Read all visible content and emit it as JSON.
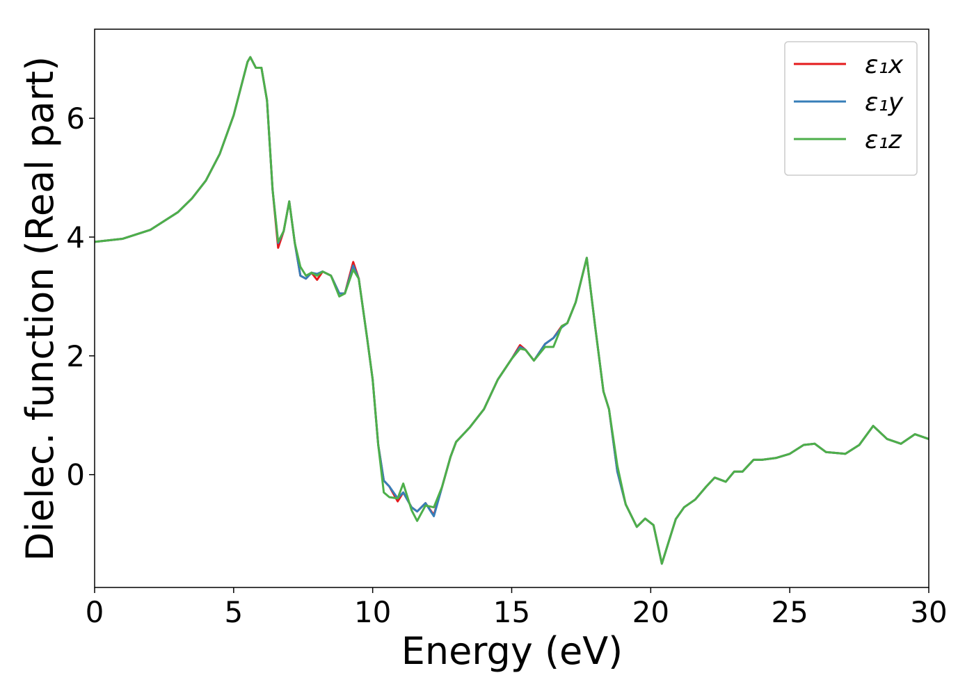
{
  "chart_data": {
    "type": "line",
    "xlabel": "Energy (eV)",
    "ylabel": "Dielec. function (Real part)",
    "x": [
      0,
      1,
      2,
      3,
      3.5,
      4,
      4.5,
      5,
      5.5,
      5.6,
      5.8,
      6,
      6.2,
      6.4,
      6.6,
      6.8,
      7,
      7.2,
      7.4,
      7.6,
      7.8,
      8,
      8.2,
      8.5,
      8.8,
      9,
      9.3,
      9.5,
      9.8,
      10,
      10.2,
      10.4,
      10.6,
      10.9,
      11.1,
      11.4,
      11.6,
      11.9,
      12.2,
      12.5,
      12.8,
      13,
      13.5,
      14,
      14.5,
      15,
      15.3,
      15.5,
      15.8,
      16.2,
      16.5,
      16.8,
      17,
      17.3,
      17.7,
      18,
      18.3,
      18.5,
      18.8,
      19.1,
      19.5,
      19.8,
      20.1,
      20.4,
      20.6,
      20.9,
      21.2,
      21.6,
      22,
      22.3,
      22.7,
      23,
      23.3,
      23.7,
      24,
      24.5,
      25,
      25.5,
      25.9,
      26.3,
      27,
      27.5,
      28,
      28.5,
      29,
      29.5,
      30
    ],
    "series": [
      {
        "name": "ε₁x",
        "color": "#e41a1c",
        "values": [
          3.92,
          3.97,
          4.12,
          4.42,
          4.65,
          4.95,
          5.4,
          6.05,
          6.95,
          7.03,
          6.85,
          6.85,
          6.3,
          4.8,
          3.82,
          4.1,
          4.6,
          3.9,
          3.35,
          3.3,
          3.4,
          3.28,
          3.42,
          3.35,
          3.05,
          3.05,
          3.58,
          3.3,
          2.3,
          1.6,
          0.5,
          -0.1,
          -0.2,
          -0.45,
          -0.3,
          -0.55,
          -0.62,
          -0.48,
          -0.68,
          -0.2,
          0.3,
          0.55,
          0.8,
          1.1,
          1.6,
          1.95,
          2.18,
          2.1,
          1.92,
          2.2,
          2.3,
          2.5,
          2.55,
          2.9,
          3.65,
          2.5,
          1.4,
          1.1,
          0.05,
          -0.5,
          -0.88,
          -0.74,
          -0.85,
          -1.5,
          -1.2,
          -0.75,
          -0.55,
          -0.42,
          -0.2,
          -0.05,
          -0.12,
          0.05,
          0.05,
          0.25,
          0.25,
          0.28,
          0.35,
          0.5,
          0.52,
          0.38,
          0.35,
          0.5,
          0.82,
          0.6,
          0.52,
          0.68,
          0.6
        ]
      },
      {
        "name": "ε₁y",
        "color": "#377eb8",
        "values": [
          3.92,
          3.97,
          4.12,
          4.42,
          4.65,
          4.95,
          5.4,
          6.05,
          6.95,
          7.03,
          6.85,
          6.85,
          6.3,
          4.8,
          3.9,
          4.1,
          4.6,
          3.9,
          3.35,
          3.3,
          3.4,
          3.38,
          3.42,
          3.35,
          3.05,
          3.05,
          3.52,
          3.3,
          2.3,
          1.6,
          0.5,
          -0.1,
          -0.2,
          -0.4,
          -0.3,
          -0.55,
          -0.62,
          -0.48,
          -0.7,
          -0.2,
          0.3,
          0.55,
          0.8,
          1.1,
          1.6,
          1.95,
          2.15,
          2.1,
          1.92,
          2.2,
          2.3,
          2.48,
          2.55,
          2.9,
          3.65,
          2.5,
          1.4,
          1.1,
          0.05,
          -0.5,
          -0.88,
          -0.74,
          -0.85,
          -1.5,
          -1.2,
          -0.75,
          -0.55,
          -0.42,
          -0.2,
          -0.05,
          -0.12,
          0.05,
          0.05,
          0.25,
          0.25,
          0.28,
          0.35,
          0.5,
          0.52,
          0.38,
          0.35,
          0.5,
          0.82,
          0.6,
          0.52,
          0.68,
          0.6
        ]
      },
      {
        "name": "ε₁z",
        "color": "#4daf4a",
        "values": [
          3.92,
          3.97,
          4.12,
          4.42,
          4.65,
          4.95,
          5.4,
          6.05,
          6.95,
          7.03,
          6.85,
          6.85,
          6.3,
          4.8,
          3.92,
          4.1,
          4.6,
          3.9,
          3.5,
          3.35,
          3.4,
          3.35,
          3.42,
          3.35,
          3.0,
          3.05,
          3.45,
          3.3,
          2.3,
          1.6,
          0.5,
          -0.3,
          -0.38,
          -0.4,
          -0.15,
          -0.6,
          -0.78,
          -0.52,
          -0.55,
          -0.2,
          0.3,
          0.55,
          0.8,
          1.1,
          1.6,
          1.95,
          2.12,
          2.1,
          1.92,
          2.15,
          2.15,
          2.5,
          2.55,
          2.9,
          3.65,
          2.5,
          1.4,
          1.1,
          0.15,
          -0.5,
          -0.88,
          -0.74,
          -0.85,
          -1.5,
          -1.2,
          -0.75,
          -0.55,
          -0.42,
          -0.2,
          -0.05,
          -0.12,
          0.05,
          0.05,
          0.25,
          0.25,
          0.28,
          0.35,
          0.5,
          0.52,
          0.38,
          0.35,
          0.5,
          0.82,
          0.6,
          0.52,
          0.68,
          0.6
        ]
      }
    ],
    "xlim": [
      0,
      30
    ],
    "xticks": [
      0,
      5,
      10,
      15,
      20,
      25,
      30
    ],
    "ylim": [
      -1.9,
      7.5
    ],
    "yticks": [
      0,
      2,
      4,
      6
    ],
    "grid": false,
    "legend": "upper right"
  }
}
